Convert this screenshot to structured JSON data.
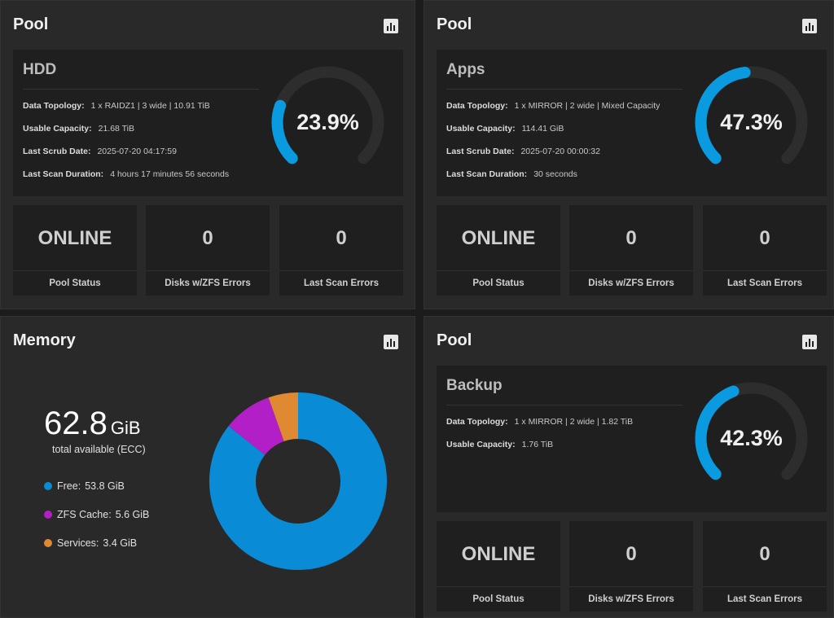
{
  "pools": [
    {
      "title": "Pool",
      "name": "HDD",
      "topology_label": "Data Topology:",
      "topology": "1 x RAIDZ1 | 3 wide | 10.91 TiB",
      "capacity_label": "Usable Capacity:",
      "capacity": "21.68 TiB",
      "scrub_label": "Last Scrub Date:",
      "scrub": "2025-07-20 04:17:59",
      "scan_label": "Last Scan Duration:",
      "scan": "4 hours 17 minutes 56 seconds",
      "usage_percent": 23.9,
      "usage_text": "23.9%",
      "status_value": "ONLINE",
      "status_label": "Pool Status",
      "disk_errors_value": "0",
      "disk_errors_label": "Disks w/ZFS Errors",
      "scan_errors_value": "0",
      "scan_errors_label": "Last Scan Errors"
    },
    {
      "title": "Pool",
      "name": "Apps",
      "topology_label": "Data Topology:",
      "topology": "1 x MIRROR | 2 wide | Mixed Capacity",
      "capacity_label": "Usable Capacity:",
      "capacity": "114.41 GiB",
      "scrub_label": "Last Scrub Date:",
      "scrub": "2025-07-20 00:00:32",
      "scan_label": "Last Scan Duration:",
      "scan": "30 seconds",
      "usage_percent": 47.3,
      "usage_text": "47.3%",
      "status_value": "ONLINE",
      "status_label": "Pool Status",
      "disk_errors_value": "0",
      "disk_errors_label": "Disks w/ZFS Errors",
      "scan_errors_value": "0",
      "scan_errors_label": "Last Scan Errors"
    },
    {
      "title": "Pool",
      "name": "Backup",
      "topology_label": "Data Topology:",
      "topology": "1 x MIRROR | 2 wide | 1.82 TiB",
      "capacity_label": "Usable Capacity:",
      "capacity": "1.76 TiB",
      "usage_percent": 42.3,
      "usage_text": "42.3%",
      "status_value": "ONLINE",
      "status_label": "Pool Status",
      "disk_errors_value": "0",
      "disk_errors_label": "Disks w/ZFS Errors",
      "scan_errors_value": "0",
      "scan_errors_label": "Last Scan Errors"
    }
  ],
  "memory": {
    "title": "Memory",
    "total_value": "62.8",
    "total_unit": "GiB",
    "subtitle": "total available (ECC)",
    "legend": [
      {
        "label": "Free:",
        "value": "53.8 GiB",
        "amount": 53.8,
        "color": "#0a8bd6"
      },
      {
        "label": "ZFS Cache:",
        "value": "5.6 GiB",
        "amount": 5.6,
        "color": "#b31fc7"
      },
      {
        "label": "Services:",
        "value": "3.4 GiB",
        "amount": 3.4,
        "color": "#df8a32"
      }
    ]
  },
  "colors": {
    "gauge": "#0a9ae0",
    "gauge_track": "#2d2d2d"
  },
  "icons": {
    "report": "bar-chart-icon"
  }
}
